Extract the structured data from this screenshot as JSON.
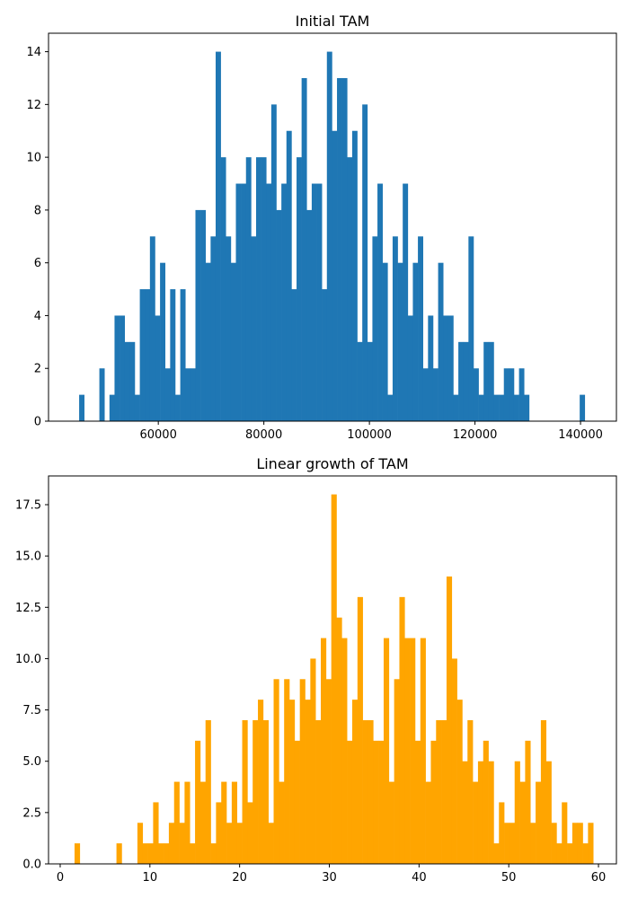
{
  "chart_data": [
    {
      "type": "bar",
      "title": "Initial TAM",
      "xlabel": "",
      "ylabel": "",
      "xlim": [
        39200,
        146800
      ],
      "ylim": [
        0,
        14.7
      ],
      "x_ticks": [
        60000,
        80000,
        100000,
        120000,
        140000
      ],
      "y_ticks": [
        0,
        2,
        4,
        6,
        8,
        10,
        12,
        14
      ],
      "y_tick_labels": [
        "0",
        "2",
        "4",
        "6",
        "8",
        "10",
        "12",
        "14"
      ],
      "x_tick_labels": [
        "60000",
        "80000",
        "100000",
        "120000",
        "140000"
      ],
      "bin_start": 45000,
      "bin_width": 958,
      "counts": [
        1,
        0,
        0,
        0,
        2,
        0,
        1,
        4,
        4,
        3,
        3,
        1,
        5,
        5,
        7,
        4,
        6,
        2,
        5,
        1,
        5,
        2,
        2,
        8,
        8,
        6,
        7,
        14,
        10,
        7,
        6,
        9,
        9,
        10,
        7,
        10,
        10,
        9,
        12,
        8,
        9,
        11,
        5,
        10,
        13,
        8,
        9,
        9,
        5,
        14,
        11,
        13,
        13,
        10,
        11,
        3,
        12,
        3,
        7,
        9,
        6,
        1,
        7,
        6,
        9,
        4,
        6,
        7,
        2,
        4,
        2,
        6,
        4,
        4,
        1,
        3,
        3,
        7,
        2,
        1,
        3,
        3,
        1,
        1,
        2,
        2,
        1,
        2,
        1,
        0,
        0,
        0,
        0,
        0,
        0,
        0,
        0,
        0,
        0,
        1
      ],
      "color": "#1f77b4"
    },
    {
      "type": "bar",
      "title": "Linear growth of TAM",
      "xlabel": "",
      "ylabel": "",
      "xlim": [
        -1.3,
        62.0
      ],
      "ylim": [
        0,
        18.9
      ],
      "x_ticks": [
        0,
        10,
        20,
        30,
        40,
        50,
        60
      ],
      "y_ticks": [
        0,
        2.5,
        5,
        7.5,
        10,
        12.5,
        15,
        17.5
      ],
      "y_tick_labels": [
        "0.0",
        "2.5",
        "5.0",
        "7.5",
        "10.0",
        "12.5",
        "15.0",
        "17.5"
      ],
      "x_tick_labels": [
        "0",
        "10",
        "20",
        "30",
        "40",
        "50",
        "60"
      ],
      "bin_start": 1.6,
      "bin_width": 0.584,
      "counts": [
        1,
        0,
        0,
        0,
        0,
        0,
        0,
        0,
        1,
        0,
        0,
        0,
        2,
        1,
        1,
        3,
        1,
        1,
        2,
        4,
        2,
        4,
        1,
        6,
        4,
        7,
        1,
        3,
        4,
        2,
        4,
        2,
        7,
        3,
        7,
        8,
        7,
        2,
        9,
        4,
        9,
        8,
        6,
        9,
        8,
        10,
        7,
        11,
        9,
        18,
        12,
        11,
        6,
        8,
        13,
        7,
        7,
        6,
        6,
        11,
        4,
        9,
        13,
        11,
        11,
        6,
        11,
        4,
        6,
        7,
        7,
        14,
        10,
        8,
        5,
        7,
        4,
        5,
        6,
        5,
        1,
        3,
        2,
        2,
        5,
        4,
        6,
        2,
        4,
        7,
        5,
        2,
        1,
        3,
        1,
        2,
        2,
        1,
        2,
        0
      ],
      "color": "#ffa500"
    }
  ]
}
